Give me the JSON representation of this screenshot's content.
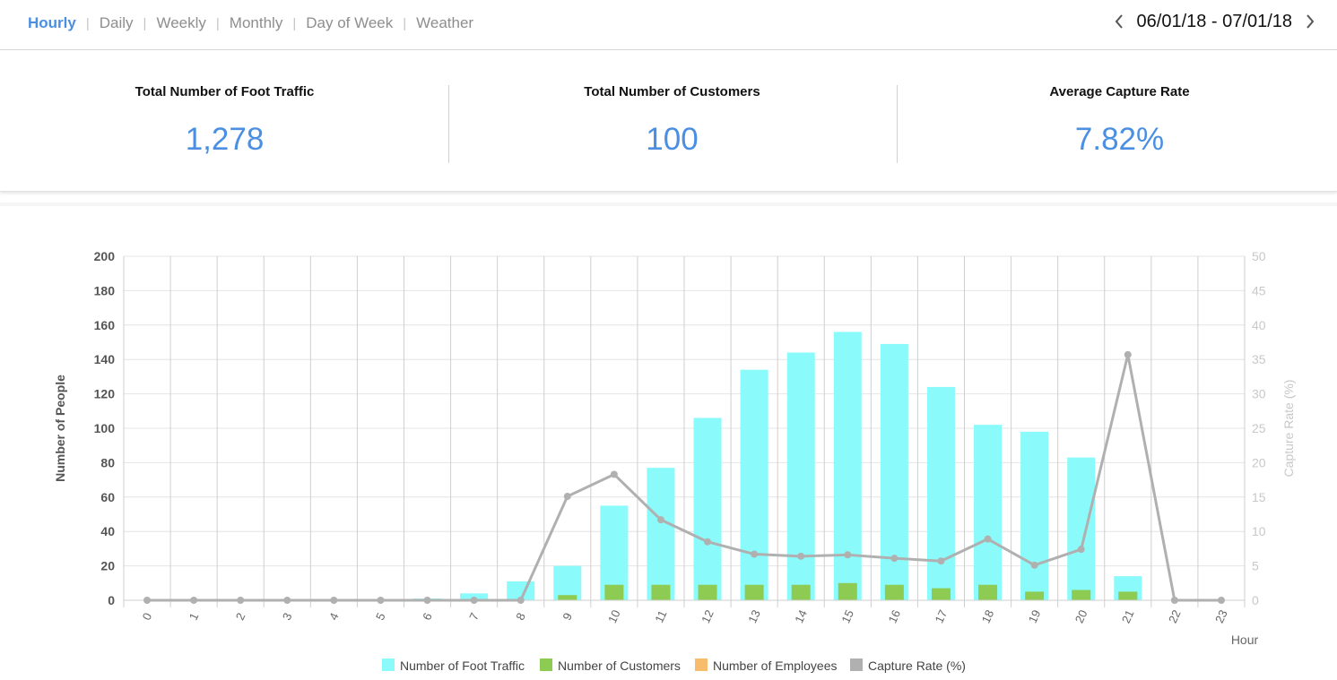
{
  "tabs": [
    {
      "label": "Hourly",
      "active": true
    },
    {
      "label": "Daily",
      "active": false
    },
    {
      "label": "Weekly",
      "active": false
    },
    {
      "label": "Monthly",
      "active": false
    },
    {
      "label": "Day of Week",
      "active": false
    },
    {
      "label": "Weather",
      "active": false
    }
  ],
  "date_range": {
    "label": "06/01/18 - 07/01/18",
    "prev_icon": "chevron-left-icon",
    "next_icon": "chevron-right-icon"
  },
  "stats": [
    {
      "label": "Total Number of Foot Traffic",
      "value": "1,278"
    },
    {
      "label": "Total Number of Customers",
      "value": "100"
    },
    {
      "label": "Average Capture Rate",
      "value": "7.82%"
    }
  ],
  "colors": {
    "accent": "#4a8fe2",
    "foot_traffic": "#8bfafa",
    "customers": "#8ecb52",
    "employees": "#f8bd6c",
    "capture_rate": "#b0b0b0"
  },
  "chart_data": {
    "type": "bar",
    "xlabel": "Hour",
    "ylabel": "Number of People",
    "y2label": "Capture Rate (%)",
    "ylim": [
      0,
      200
    ],
    "y2lim": [
      0,
      50
    ],
    "yticks": [
      0,
      20,
      40,
      60,
      80,
      100,
      120,
      140,
      160,
      180,
      200
    ],
    "y2ticks": [
      0,
      5,
      10,
      15,
      20,
      25,
      30,
      35,
      40,
      45,
      50
    ],
    "categories": [
      "0",
      "1",
      "2",
      "3",
      "4",
      "5",
      "6",
      "7",
      "8",
      "9",
      "10",
      "11",
      "12",
      "13",
      "14",
      "15",
      "16",
      "17",
      "18",
      "19",
      "20",
      "21",
      "22",
      "23"
    ],
    "grid": true,
    "legend_position": "bottom",
    "series": [
      {
        "name": "Number of Foot Traffic",
        "kind": "bar",
        "axis": "left",
        "values": [
          0,
          0,
          0,
          0,
          0,
          0,
          1,
          4,
          11,
          20,
          55,
          77,
          106,
          134,
          144,
          156,
          149,
          124,
          102,
          98,
          83,
          14,
          0,
          0
        ]
      },
      {
        "name": "Number of Customers",
        "kind": "bar",
        "axis": "left",
        "values": [
          0,
          0,
          0,
          0,
          0,
          0,
          0,
          0,
          0,
          3,
          9,
          9,
          9,
          9,
          9,
          10,
          9,
          7,
          9,
          5,
          6,
          5,
          0,
          0
        ]
      },
      {
        "name": "Number of Employees",
        "kind": "bar",
        "axis": "left",
        "values": [
          0,
          0,
          0,
          0,
          0,
          0,
          0,
          0,
          0,
          0,
          0,
          0,
          0,
          0,
          0,
          0,
          0,
          0,
          0,
          0,
          0,
          0,
          0,
          0
        ]
      },
      {
        "name": "Capture Rate (%)",
        "kind": "line",
        "axis": "right",
        "values": [
          0,
          0,
          0,
          0,
          0,
          0,
          0,
          0,
          0,
          15.1,
          18.3,
          11.7,
          8.5,
          6.7,
          6.4,
          6.6,
          6.1,
          5.7,
          8.9,
          5.1,
          7.4,
          35.7,
          0,
          0
        ]
      }
    ]
  }
}
